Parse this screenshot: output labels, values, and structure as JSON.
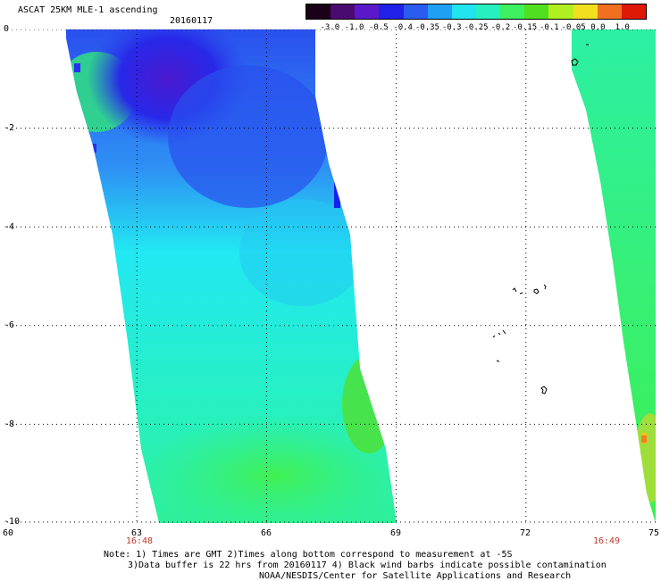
{
  "header": {
    "title": "ASCAT 25KM MLE-1 ascending",
    "date": "20160117"
  },
  "colorbar": {
    "labels": [
      "-3.0",
      "-1.0",
      "-0.5",
      "-0.4",
      "-0.35",
      "-0.3",
      "-0.25",
      "-0.2",
      "-0.15",
      "-0.1",
      "-0.05",
      "0.0",
      "1.0"
    ],
    "colors": [
      "#1a0018",
      "#4b0a70",
      "#5a18c8",
      "#2020e8",
      "#2a5cf0",
      "#1ea0f4",
      "#22e4f0",
      "#26f0c0",
      "#3cf060",
      "#50e020",
      "#b0f020",
      "#f0e020",
      "#f07020",
      "#e01808"
    ]
  },
  "map": {
    "x_ticks": [
      "60",
      "63",
      "66",
      "69",
      "72",
      "75"
    ],
    "y_ticks": [
      "0",
      "-2",
      "-4",
      "-6",
      "-8",
      "-10"
    ],
    "time_labels": [
      "16:48",
      "16:49"
    ]
  },
  "notes": {
    "line1": "Note: 1) Times are GMT 2)Times along bottom correspond to measurement at -5S",
    "line2": "3)Data buffer is 22 hrs from 20160117 4) Black wind barbs indicate possible contamination",
    "line3": "NOAA/NESDIS/Center for Satellite Applications and Research"
  }
}
